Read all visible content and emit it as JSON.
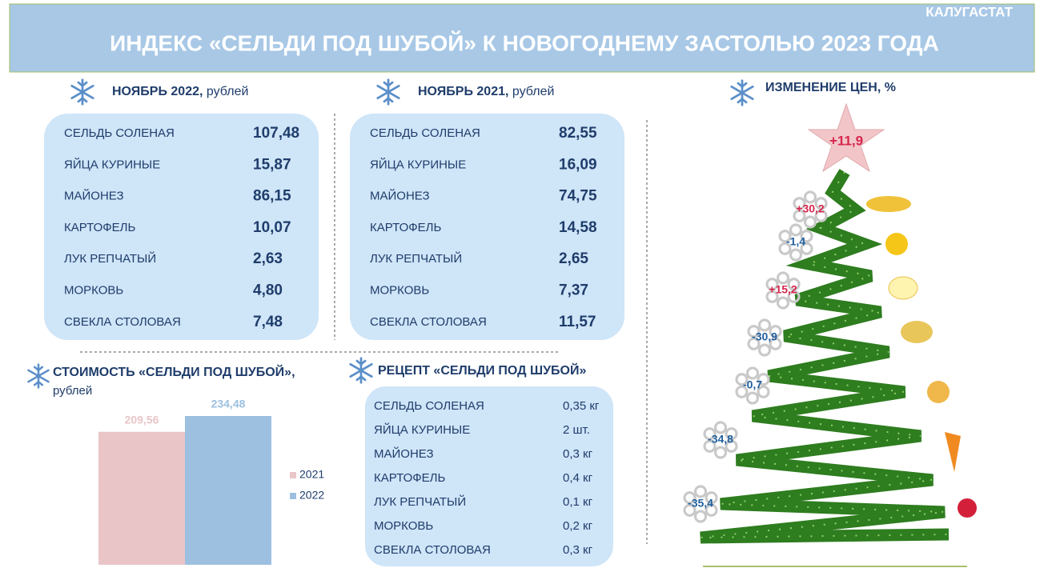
{
  "header": {
    "source": "КАЛУГАСТАТ",
    "title": "ИНДЕКС «СЕЛЬДИ ПОД ШУБОЙ» К НОВОГОДНЕМУ ЗАСТОЛЬЮ 2023 ГОДА"
  },
  "prices_2022": {
    "title": "НОЯБРЬ 2022,",
    "unit": "рублей",
    "rows": [
      [
        "СЕЛЬДЬ СОЛЕНАЯ",
        "107,48"
      ],
      [
        "ЯЙЦА КУРИНЫЕ",
        "15,87"
      ],
      [
        "МАЙОНЕЗ",
        "86,15"
      ],
      [
        "КАРТОФЕЛЬ",
        "10,07"
      ],
      [
        "ЛУК РЕПЧАТЫЙ",
        "2,63"
      ],
      [
        "МОРКОВЬ",
        "4,80"
      ],
      [
        "СВЕКЛА СТОЛОВАЯ",
        "7,48"
      ]
    ]
  },
  "prices_2021": {
    "title": "НОЯБРЬ 2021,",
    "unit": "рублей",
    "rows": [
      [
        "СЕЛЬДЬ СОЛЕНАЯ",
        "82,55"
      ],
      [
        "ЯЙЦА КУРИНЫЕ",
        "16,09"
      ],
      [
        "МАЙОНЕЗ",
        "74,75"
      ],
      [
        "КАРТОФЕЛЬ",
        "14,58"
      ],
      [
        "ЛУК РЕПЧАТЫЙ",
        "2,65"
      ],
      [
        "МОРКОВЬ",
        "7,37"
      ],
      [
        "СВЕКЛА СТОЛОВАЯ",
        "11,57"
      ]
    ]
  },
  "cost": {
    "title": "СТОИМОСТЬ «СЕЛЬДИ ПОД ШУБОЙ»,",
    "unit": "рублей",
    "chart": {
      "type": "bar",
      "series": [
        {
          "name": "2021",
          "color": "#e9c5c7",
          "values": [
            209.56
          ],
          "value_labels": [
            "209,56"
          ]
        },
        {
          "name": "2022",
          "color": "#9dc0e1",
          "values": [
            234.48
          ],
          "value_labels": [
            "234,48"
          ]
        }
      ]
    }
  },
  "recipe": {
    "title": "РЕЦЕПТ «СЕЛЬДИ ПОД ШУБОЙ»",
    "rows": [
      [
        "СЕЛЬДЬ СОЛЕНАЯ",
        "0,35 кг"
      ],
      [
        "ЯЙЦА КУРИНЫЕ",
        "2 шт."
      ],
      [
        "МАЙОНЕЗ",
        "0,3 кг"
      ],
      [
        "КАРТОФЕЛЬ",
        "0,4 кг"
      ],
      [
        "ЛУК РЕПЧАТЫЙ",
        "0,1 кг"
      ],
      [
        "МОРКОВЬ",
        "0,2 кг"
      ],
      [
        "СВЕКЛА СТОЛОВАЯ",
        "0,3 кг"
      ]
    ]
  },
  "changes": {
    "title": "ИЗМЕНЕНИЕ ЦЕН, %",
    "total": "+11,9",
    "items": [
      "+30,2",
      "-1,4",
      "+15,2",
      "-30,9",
      "-0,7",
      "-34,8",
      "-35,4"
    ]
  }
}
